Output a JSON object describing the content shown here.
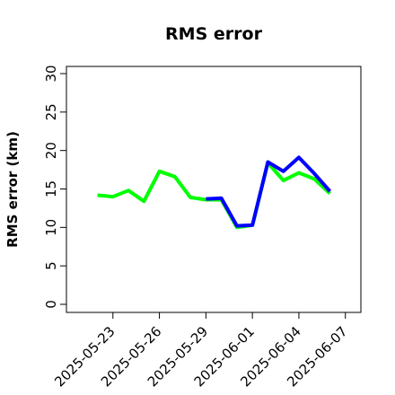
{
  "chart_data": {
    "type": "line",
    "title": "RMS error",
    "xlabel": "",
    "ylabel": "RMS error (km)",
    "ylim": [
      0,
      30
    ],
    "yticks": [
      0,
      5,
      10,
      15,
      20,
      25,
      30
    ],
    "xlim": [
      "2025-05-20",
      "2025-06-08"
    ],
    "xticks": [
      "2025-05-23",
      "2025-05-26",
      "2025-05-29",
      "2025-06-01",
      "2025-06-04",
      "2025-06-07"
    ],
    "highlighted_tick": "2025-05-29",
    "highlight_color": "#1a8a1a",
    "grid": false,
    "legend": "none",
    "series": [
      {
        "color": "#00ff00",
        "x": [
          "2025-05-22",
          "2025-05-23",
          "2025-05-24",
          "2025-05-25",
          "2025-05-26",
          "2025-05-27",
          "2025-05-28",
          "2025-05-29",
          "2025-05-30",
          "2025-05-31",
          "2025-06-01",
          "2025-06-02",
          "2025-06-03",
          "2025-06-04",
          "2025-06-05",
          "2025-06-06"
        ],
        "values": [
          14.2,
          14.0,
          14.8,
          13.4,
          17.3,
          16.6,
          13.9,
          13.6,
          13.6,
          10.0,
          10.3,
          18.4,
          16.1,
          17.1,
          16.3,
          14.4
        ]
      },
      {
        "color": "#0000ff",
        "x": [
          "2025-05-29",
          "2025-05-30",
          "2025-05-31",
          "2025-06-01",
          "2025-06-02",
          "2025-06-03",
          "2025-06-04",
          "2025-06-05",
          "2025-06-06"
        ],
        "values": [
          13.7,
          13.8,
          10.2,
          10.3,
          18.5,
          17.3,
          19.1,
          17.0,
          14.7
        ]
      }
    ]
  }
}
